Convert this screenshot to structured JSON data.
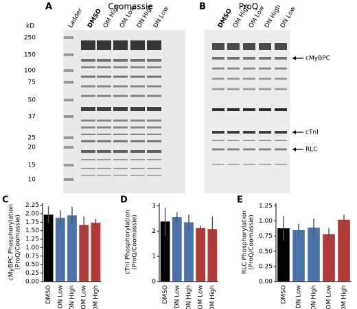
{
  "figure": {
    "gel_a": {
      "label": "A",
      "title": "Coomassie",
      "unit": "kD",
      "ladder": [
        "250",
        "150",
        "100",
        "75",
        "50",
        "37",
        "25",
        "20",
        "15",
        "10"
      ],
      "lanes": [
        {
          "name": "Ladder",
          "color": "#222222"
        },
        {
          "name": "DMSO",
          "color": "#000000"
        },
        {
          "name": "OM High",
          "color": "#b03a3a"
        },
        {
          "name": "OM Low",
          "color": "#b03a3a"
        },
        {
          "name": "DN High",
          "color": "#4a72a8"
        },
        {
          "name": "DN Low",
          "color": "#4a72a8"
        }
      ]
    },
    "gel_b": {
      "label": "B",
      "title": "ProQ",
      "lanes": [
        {
          "name": "DMSO",
          "color": "#000000"
        },
        {
          "name": "OM High",
          "color": "#b03a3a"
        },
        {
          "name": "OM Low",
          "color": "#b03a3a"
        },
        {
          "name": "DN High",
          "color": "#4a72a8"
        },
        {
          "name": "DN Low",
          "color": "#4a72a8"
        }
      ],
      "markers": [
        "cMyBPC",
        "cTnI",
        "RLC"
      ]
    }
  },
  "chart_data": [
    {
      "type": "bar",
      "label": "C",
      "ylabel": [
        "cMyBPC Phosphorylation",
        "(ProQ/Coomassie)"
      ],
      "categories": [
        "DMSO",
        "DN Low",
        "DN High",
        "OM Low",
        "OM High"
      ],
      "values": [
        1.97,
        1.88,
        1.95,
        1.67,
        1.73
      ],
      "errors": [
        0.25,
        0.22,
        0.25,
        0.25,
        0.12
      ],
      "colors": [
        "#000000",
        "#4a72a8",
        "#4a72a8",
        "#b03a3a",
        "#b03a3a"
      ],
      "ylim": [
        0,
        2.32
      ],
      "yticks": [
        {
          "value": 0,
          "label": "0.00"
        },
        {
          "value": 0.25,
          "label": "0.25"
        },
        {
          "value": 0.5,
          "label": "0.50"
        },
        {
          "value": 0.75,
          "label": "0.75"
        },
        {
          "value": 1,
          "label": "1.00"
        },
        {
          "value": 1.25,
          "label": "1.25"
        },
        {
          "value": 1.5,
          "label": "1.50"
        },
        {
          "value": 1.75,
          "label": "1.75"
        },
        {
          "value": 2,
          "label": "2.00"
        },
        {
          "value": 2.25,
          "label": "2.25"
        }
      ]
    },
    {
      "type": "bar",
      "label": "D",
      "ylabel": [
        "cTnI Phosphorylation",
        "(ProQ/Coomassie)"
      ],
      "categories": [
        "DMSO",
        "DN Low",
        "DN High",
        "OM Low",
        "OM High"
      ],
      "values": [
        2.38,
        2.55,
        2.35,
        2.12,
        2.08
      ],
      "errors": [
        0.55,
        0.2,
        0.3,
        0.1,
        0.5
      ],
      "colors": [
        "#000000",
        "#4a72a8",
        "#4a72a8",
        "#b03a3a",
        "#b03a3a"
      ],
      "ylim": [
        0,
        3.12
      ],
      "yticks": [
        0,
        1,
        2,
        3
      ]
    },
    {
      "type": "bar",
      "label": "E",
      "ylabel": [
        "RLC Phosphorylation",
        "(ProQ/Coomassie)"
      ],
      "categories": [
        "DMSO",
        "DN Low",
        "DN High",
        "OM Low",
        "OM High"
      ],
      "values": [
        0.88,
        0.85,
        0.89,
        0.78,
        1.02
      ],
      "errors": [
        0.2,
        0.1,
        0.15,
        0.1,
        0.08
      ],
      "colors": [
        "#000000",
        "#4a72a8",
        "#4a72a8",
        "#b03a3a",
        "#b03a3a"
      ],
      "ylim": [
        0,
        1.3
      ],
      "yticks": [
        {
          "value": 0,
          "label": "0.00"
        },
        {
          "value": 0.25,
          "label": "0.25"
        },
        {
          "value": 0.5,
          "label": "0.50"
        },
        {
          "value": 0.75,
          "label": "0.75"
        },
        {
          "value": 1,
          "label": "1.00"
        },
        {
          "value": 1.25,
          "label": "1.25"
        }
      ]
    }
  ]
}
